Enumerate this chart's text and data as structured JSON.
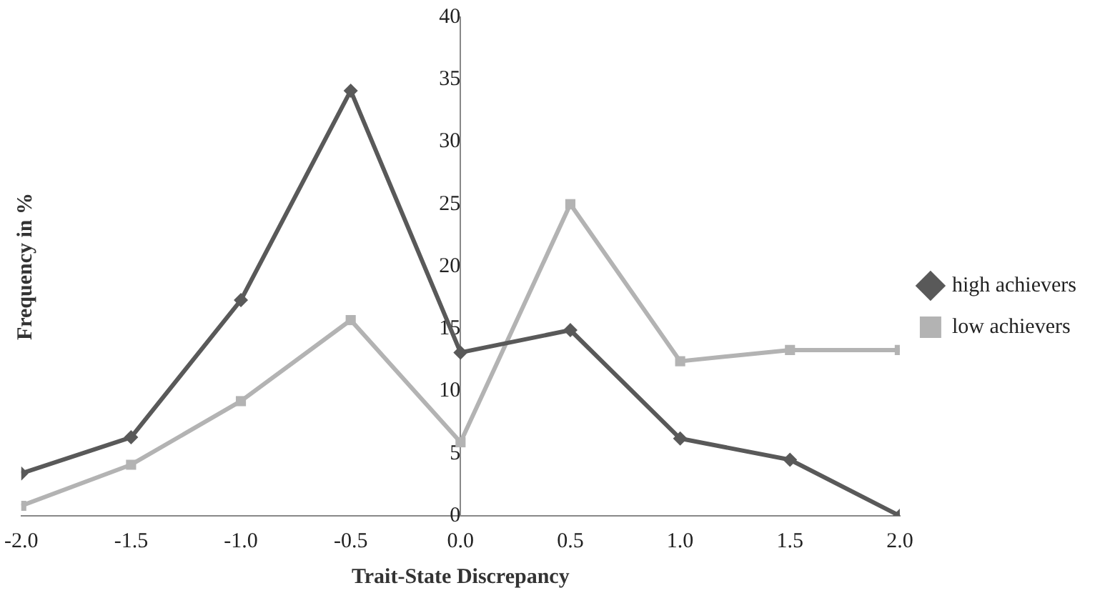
{
  "chart_data": {
    "type": "line",
    "xlabel": "Trait-State Discrepancy",
    "ylabel": "Frequency in %",
    "x": [
      -2.0,
      -1.5,
      -1.0,
      -0.5,
      0.0,
      0.5,
      1.0,
      1.5,
      2.0
    ],
    "xlim": [
      -2,
      2
    ],
    "xticks": [
      {
        "value": -2,
        "label": "-2.0"
      },
      {
        "value": -1.5,
        "label": "-1.5"
      },
      {
        "value": -1,
        "label": "-1.0"
      },
      {
        "value": -0.5,
        "label": "-0.5"
      },
      {
        "value": 0,
        "label": "0.0"
      },
      {
        "value": 0.5,
        "label": "0.5"
      },
      {
        "value": 1,
        "label": "1.0"
      },
      {
        "value": 1.5,
        "label": "1.5"
      },
      {
        "value": 2,
        "label": "2.0"
      }
    ],
    "ylim": [
      0,
      40
    ],
    "yticks": [
      0,
      5,
      10,
      15,
      20,
      25,
      30,
      35,
      40
    ],
    "series": [
      {
        "name": "high achievers",
        "color": "#595959",
        "marker": "diamond",
        "values": [
          3.4,
          6.3,
          17.3,
          34.1,
          13.1,
          14.9,
          6.2,
          4.5,
          0
        ]
      },
      {
        "name": "low achievers",
        "color": "#b3b3b3",
        "marker": "square",
        "values": [
          0.8,
          4.1,
          9.2,
          15.7,
          5.9,
          25,
          12.4,
          13.3,
          13.3
        ]
      }
    ],
    "grid": false,
    "legend": "right",
    "line_style": "solid"
  }
}
